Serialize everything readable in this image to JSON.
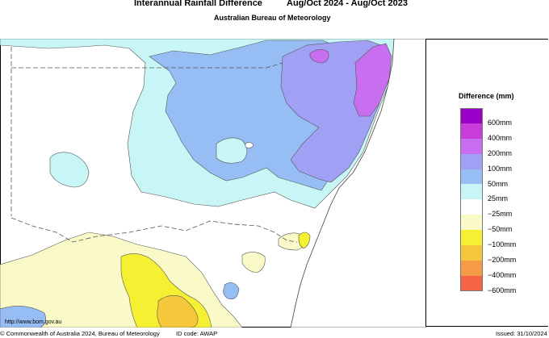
{
  "title": {
    "main": "Interannual Rainfall Difference",
    "period": "Aug/Oct 2024 - Aug/Oct 2023",
    "agency": "Australian Bureau of Meteorology"
  },
  "legend": {
    "title": "Difference (mm)",
    "items": [
      {
        "label": "600mm",
        "color": "#9b00c8"
      },
      {
        "label": "400mm",
        "color": "#c83cdc"
      },
      {
        "label": "200mm",
        "color": "#c86ef0"
      },
      {
        "label": "100mm",
        "color": "#a0a0f5"
      },
      {
        "label": "50mm",
        "color": "#96bef5"
      },
      {
        "label": "25mm",
        "color": "#c8f5f5"
      },
      {
        "label": "−25mm",
        "color": "#ffffff"
      },
      {
        "label": "−50mm",
        "color": "#fafac8"
      },
      {
        "label": "−100mm",
        "color": "#f5f032"
      },
      {
        "label": "−200mm",
        "color": "#f5c83c"
      },
      {
        "label": "−400mm",
        "color": "#f59b46"
      },
      {
        "label": "−600mm",
        "color": "#f56446"
      }
    ]
  },
  "footer": {
    "url": "http://www.bom.gov.au",
    "copyright": "© Commonwealth of Australia 2024, Bureau of Meteorology",
    "id_code": "ID code: AWAP",
    "issued": "Issued: 31/10/2024"
  },
  "colors": {
    "light_blue": "#c8f5f5",
    "mid_blue": "#96bef5",
    "blue": "#a0a0f5",
    "purple": "#c86ef0",
    "pale_yellow": "#fafac8",
    "yellow": "#f5f032",
    "orange": "#f5c83c"
  }
}
